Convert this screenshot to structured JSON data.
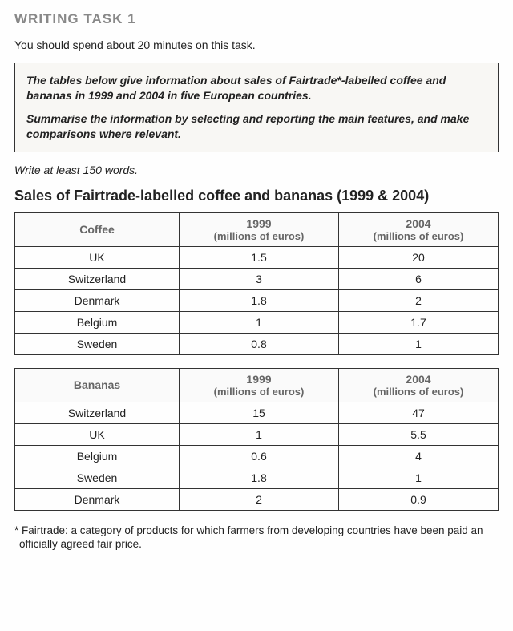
{
  "heading": "WRITING TASK 1",
  "time_instruction": "You should spend about 20 minutes on this task.",
  "prompt": {
    "p1": "The tables below give information about sales of Fairtrade*-labelled coffee and bananas in 1999 and 2004 in five European countries.",
    "p2": "Summarise the information by selecting and reporting the main features, and make comparisons where relevant."
  },
  "word_instruction": "Write at least 150 words.",
  "tables_title": "Sales of Fairtrade-labelled coffee and bananas (1999 & 2004)",
  "coffee_table": {
    "name_header": "Coffee",
    "col1_year": "1999",
    "col1_unit": "(millions of euros)",
    "col2_year": "2004",
    "col2_unit": "(millions of euros)",
    "rows": [
      {
        "country": "UK",
        "v1": "1.5",
        "v2": "20"
      },
      {
        "country": "Switzerland",
        "v1": "3",
        "v2": "6"
      },
      {
        "country": "Denmark",
        "v1": "1.8",
        "v2": "2"
      },
      {
        "country": "Belgium",
        "v1": "1",
        "v2": "1.7"
      },
      {
        "country": "Sweden",
        "v1": "0.8",
        "v2": "1"
      }
    ]
  },
  "bananas_table": {
    "name_header": "Bananas",
    "col1_year": "1999",
    "col1_unit": "(millions of euros)",
    "col2_year": "2004",
    "col2_unit": "(millions of euros)",
    "rows": [
      {
        "country": "Switzerland",
        "v1": "15",
        "v2": "47"
      },
      {
        "country": "UK",
        "v1": "1",
        "v2": "5.5"
      },
      {
        "country": "Belgium",
        "v1": "0.6",
        "v2": "4"
      },
      {
        "country": "Sweden",
        "v1": "1.8",
        "v2": "1"
      },
      {
        "country": "Denmark",
        "v1": "2",
        "v2": "0.9"
      }
    ]
  },
  "footnote": "* Fairtrade: a category of products for which farmers from developing countries have been paid an officially agreed fair price."
}
